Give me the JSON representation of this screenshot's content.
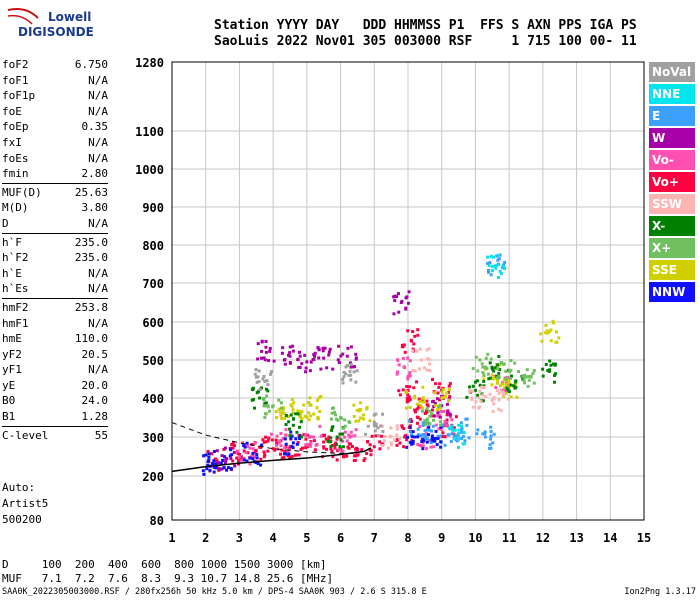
{
  "logo": {
    "line1": "Lowell",
    "line2": "DIGISONDE"
  },
  "header": {
    "line1": "Station YYYY DAY   DDD HHMMSS P1  FFS S AXN PPS IGA PS",
    "line2": "SaoLuis 2022 Nov01 305 003000 RSF     1 715 100 00- 11"
  },
  "params": [
    {
      "k": "foF2",
      "v": "6.750"
    },
    {
      "k": "foF1",
      "v": "N/A"
    },
    {
      "k": "foF1p",
      "v": "N/A"
    },
    {
      "k": "foE",
      "v": "N/A"
    },
    {
      "k": "foEp",
      "v": "0.35"
    },
    {
      "k": "fxI",
      "v": "N/A"
    },
    {
      "k": "foEs",
      "v": "N/A"
    },
    {
      "k": "fmin",
      "v": "2.80"
    },
    {
      "k": "MUF(D)",
      "v": "25.63"
    },
    {
      "k": "M(D)",
      "v": "3.80"
    },
    {
      "k": "D",
      "v": "N/A"
    },
    {
      "k": "h`F",
      "v": "235.0"
    },
    {
      "k": "h`F2",
      "v": "235.0"
    },
    {
      "k": "h`E",
      "v": "N/A"
    },
    {
      "k": "h`Es",
      "v": "N/A"
    },
    {
      "k": "hmF2",
      "v": "253.8"
    },
    {
      "k": "hmF1",
      "v": "N/A"
    },
    {
      "k": "hmE",
      "v": "110.0"
    },
    {
      "k": "yF2",
      "v": "20.5"
    },
    {
      "k": "yF1",
      "v": "N/A"
    },
    {
      "k": "yE",
      "v": "20.0"
    },
    {
      "k": "B0",
      "v": "24.0"
    },
    {
      "k": "B1",
      "v": "1.28"
    },
    {
      "k": "C-level",
      "v": "55"
    }
  ],
  "auto": {
    "l1": "Auto:",
    "l2": "Artist5",
    "l3": "500200"
  },
  "legend": [
    {
      "label": "NoVal",
      "color": "#a0a0a0"
    },
    {
      "label": "NNE",
      "color": "#00e5ee"
    },
    {
      "label": "E",
      "color": "#3ba0ff"
    },
    {
      "label": "W",
      "color": "#a800a8"
    },
    {
      "label": "Vo-",
      "color": "#ff4fb0"
    },
    {
      "label": "Vo+",
      "color": "#ff0040"
    },
    {
      "label": "SSW",
      "color": "#ffb4b4"
    },
    {
      "label": "X-",
      "color": "#008000"
    },
    {
      "label": "X+",
      "color": "#70c060"
    },
    {
      "label": "SSE",
      "color": "#d0d000"
    },
    {
      "label": "NNW",
      "color": "#1010ff"
    }
  ],
  "bottom": {
    "line1": "D     100  200  400  600  800 1000 1500 3000 [km]",
    "line2": "MUF   7.1  7.2  7.6  8.3  9.3 10.7 14.8 25.6 [MHz]"
  },
  "footer": "SAA0K_2022305003000.RSF / 280fx256h 50 kHz 5.0 km / DPS-4 SAA0K 903 / 2.6 S 315.8 E",
  "version": "Ion2Png 1.3.17",
  "chart_data": {
    "type": "scatter",
    "xlabel": "",
    "ylabel": "",
    "xlim": [
      1,
      15
    ],
    "ylim": [
      80,
      1280
    ],
    "x_ticks": [
      "1",
      "2",
      "3",
      "4",
      "5",
      "6",
      "7",
      "8",
      "9",
      "10",
      "11",
      "12",
      "13",
      "14",
      "15"
    ],
    "y_ticks": [
      "80",
      "200",
      "300",
      "400",
      "500",
      "600",
      "700",
      "800",
      "900",
      "1000",
      "1100",
      "1280"
    ],
    "grid": true,
    "series": [
      {
        "name": "Vo+",
        "color": "#ff0040",
        "points": [
          [
            2.3,
            240
          ],
          [
            3.0,
            255
          ],
          [
            3.5,
            265
          ],
          [
            4.0,
            270
          ],
          [
            4.5,
            275
          ],
          [
            5.0,
            280
          ],
          [
            5.5,
            275
          ],
          [
            6.0,
            270
          ],
          [
            6.5,
            268
          ],
          [
            7.0,
            275
          ],
          [
            7.9,
            300
          ],
          [
            8.0,
            420
          ],
          [
            8.1,
            550
          ],
          [
            8.3,
            350
          ],
          [
            8.6,
            380
          ],
          [
            9.0,
            420
          ],
          [
            9.3,
            330
          ]
        ]
      },
      {
        "name": "Vo-",
        "color": "#ff4fb0",
        "points": [
          [
            3.2,
            260
          ],
          [
            4.2,
            290
          ],
          [
            5.2,
            300
          ],
          [
            6.2,
            290
          ],
          [
            7.9,
            480
          ],
          [
            8.5,
            300
          ],
          [
            9.1,
            340
          ],
          [
            10.8,
            440
          ]
        ]
      },
      {
        "name": "W",
        "color": "#a800a8",
        "points": [
          [
            2.6,
            245
          ],
          [
            3.8,
            520
          ],
          [
            4.5,
            510
          ],
          [
            5.0,
            495
          ],
          [
            5.5,
            505
          ],
          [
            6.2,
            510
          ],
          [
            7.8,
            650
          ],
          [
            9.0,
            380
          ]
        ]
      },
      {
        "name": "E",
        "color": "#3ba0ff",
        "points": [
          [
            8.3,
            320
          ],
          [
            8.7,
            315
          ],
          [
            9.2,
            305
          ],
          [
            9.6,
            320
          ],
          [
            10.3,
            300
          ],
          [
            10.6,
            745
          ]
        ]
      },
      {
        "name": "NNW",
        "color": "#1010ff",
        "points": [
          [
            2.2,
            232
          ],
          [
            2.5,
            240
          ],
          [
            3.4,
            258
          ],
          [
            4.6,
            285
          ],
          [
            8.2,
            300
          ],
          [
            8.8,
            296
          ]
        ]
      },
      {
        "name": "SSE",
        "color": "#d0d000",
        "points": [
          [
            4.3,
            370
          ],
          [
            4.8,
            365
          ],
          [
            5.3,
            375
          ],
          [
            6.6,
            370
          ],
          [
            8.2,
            400
          ],
          [
            9.0,
            400
          ],
          [
            10.5,
            460
          ],
          [
            11.0,
            430
          ],
          [
            12.2,
            575
          ]
        ]
      },
      {
        "name": "X-",
        "color": "#008000",
        "points": [
          [
            3.6,
            400
          ],
          [
            4.6,
            330
          ],
          [
            5.9,
            300
          ],
          [
            10.0,
            420
          ],
          [
            10.6,
            480
          ],
          [
            11.2,
            445
          ],
          [
            12.2,
            470
          ]
        ]
      },
      {
        "name": "X+",
        "color": "#70c060",
        "points": [
          [
            4.0,
            380
          ],
          [
            6.0,
            350
          ],
          [
            8.7,
            360
          ],
          [
            10.2,
            490
          ],
          [
            10.9,
            470
          ],
          [
            11.5,
            455
          ]
        ]
      },
      {
        "name": "SSW",
        "color": "#ffb4b4",
        "points": [
          [
            7.5,
            300
          ],
          [
            8.4,
            500
          ],
          [
            10.1,
            400
          ],
          [
            10.7,
            395
          ]
        ]
      },
      {
        "name": "NNE",
        "color": "#00e5ee",
        "points": [
          [
            9.5,
            300
          ],
          [
            10.6,
            743
          ]
        ]
      },
      {
        "name": "NoVal",
        "color": "#a0a0a0",
        "points": [
          [
            3.7,
            450
          ],
          [
            6.3,
            460
          ],
          [
            7.0,
            330
          ]
        ]
      }
    ],
    "profile_line": [
      [
        1,
        212
      ],
      [
        2,
        224
      ],
      [
        3,
        233
      ],
      [
        4,
        240
      ],
      [
        5,
        246
      ],
      [
        6,
        255
      ],
      [
        6.7,
        263
      ],
      [
        6.9,
        272
      ]
    ],
    "dashed_line": [
      [
        1,
        337
      ],
      [
        2,
        305
      ],
      [
        3,
        285
      ],
      [
        4,
        270
      ],
      [
        5,
        262
      ],
      [
        6,
        258
      ],
      [
        6.5,
        258
      ]
    ]
  }
}
